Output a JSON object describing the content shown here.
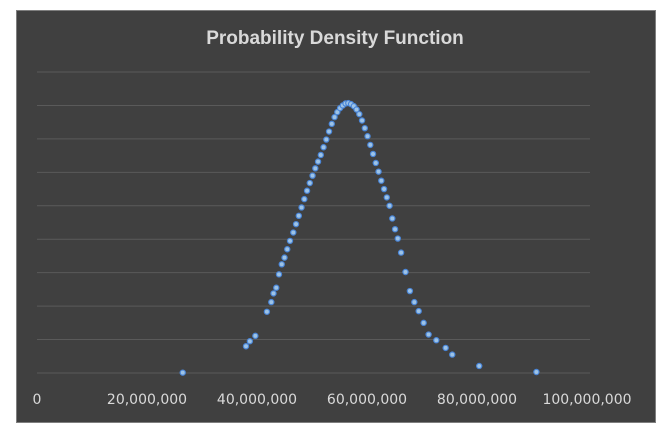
{
  "chart_data": {
    "type": "scatter",
    "title": "Probability Density Function",
    "xlabel": "",
    "ylabel": "",
    "xlim": [
      0,
      100000000
    ],
    "ylim": [
      0,
      9
    ],
    "x_ticks": [
      0,
      20000000,
      40000000,
      60000000,
      80000000,
      100000000
    ],
    "x_tick_labels": [
      "0",
      "20,000,000",
      "40,000,000",
      "60,000,000",
      "80,000,000",
      "100,000,000"
    ],
    "y_tick_labels_shown": false,
    "grid": "horizontal",
    "gridlines": 9,
    "colors": {
      "background": "#404040",
      "marker_fill": "#9dc3e6",
      "marker_edge": "#4a86d8",
      "gridline": "#5a5a5a",
      "text": "#d9d9d9"
    },
    "series": [
      {
        "points": [
          [
            26500000,
            0.01
          ],
          [
            38000000,
            0.8
          ],
          [
            38700000,
            0.95
          ],
          [
            39700000,
            1.11
          ],
          [
            41800000,
            1.83
          ],
          [
            42600000,
            2.12
          ],
          [
            43000000,
            2.38
          ],
          [
            43500000,
            2.55
          ],
          [
            44000000,
            2.95
          ],
          [
            44500000,
            3.25
          ],
          [
            45000000,
            3.45
          ],
          [
            45500000,
            3.7
          ],
          [
            46000000,
            3.95
          ],
          [
            46600000,
            4.2
          ],
          [
            47100000,
            4.45
          ],
          [
            47600000,
            4.7
          ],
          [
            48100000,
            4.95
          ],
          [
            48600000,
            5.2
          ],
          [
            49100000,
            5.45
          ],
          [
            49600000,
            5.68
          ],
          [
            50100000,
            5.9
          ],
          [
            50600000,
            6.12
          ],
          [
            51100000,
            6.32
          ],
          [
            51600000,
            6.52
          ],
          [
            52100000,
            6.75
          ],
          [
            52600000,
            6.98
          ],
          [
            53100000,
            7.22
          ],
          [
            53600000,
            7.45
          ],
          [
            54100000,
            7.65
          ],
          [
            54600000,
            7.8
          ],
          [
            55100000,
            7.92
          ],
          [
            55600000,
            8.0
          ],
          [
            56100000,
            8.06
          ],
          [
            56600000,
            8.07
          ],
          [
            57100000,
            8.04
          ],
          [
            57600000,
            7.98
          ],
          [
            58100000,
            7.88
          ],
          [
            58600000,
            7.74
          ],
          [
            59100000,
            7.55
          ],
          [
            59600000,
            7.32
          ],
          [
            60100000,
            7.08
          ],
          [
            60600000,
            6.82
          ],
          [
            61100000,
            6.55
          ],
          [
            61600000,
            6.28
          ],
          [
            62100000,
            6.02
          ],
          [
            62600000,
            5.75
          ],
          [
            63100000,
            5.5
          ],
          [
            63600000,
            5.25
          ],
          [
            64100000,
            5.0
          ],
          [
            64600000,
            4.62
          ],
          [
            65100000,
            4.3
          ],
          [
            65600000,
            4.02
          ],
          [
            66200000,
            3.6
          ],
          [
            67000000,
            3.02
          ],
          [
            67800000,
            2.45
          ],
          [
            68600000,
            2.12
          ],
          [
            69400000,
            1.85
          ],
          [
            70300000,
            1.5
          ],
          [
            71200000,
            1.15
          ],
          [
            72600000,
            0.98
          ],
          [
            74300000,
            0.75
          ],
          [
            75500000,
            0.55
          ],
          [
            80400000,
            0.21
          ],
          [
            90800000,
            0.03
          ]
        ]
      }
    ]
  }
}
